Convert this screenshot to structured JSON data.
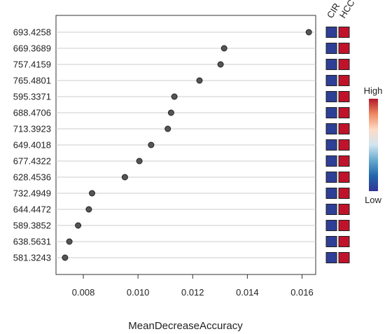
{
  "chart_data": {
    "type": "dot",
    "xlabel": "MeanDecreaseAccuracy",
    "xlim": [
      0.007,
      0.0165
    ],
    "xticks": [
      "0.008",
      "0.010",
      "0.012",
      "0.014",
      "0.016"
    ],
    "xtick_values": [
      0.008,
      0.01,
      0.012,
      0.014,
      0.016
    ],
    "grid": "horizontal",
    "categories": [
      "693.4258",
      "669.3689",
      "757.4159",
      "765.4801",
      "595.3371",
      "688.4706",
      "713.3923",
      "649.4018",
      "677.4322",
      "628.4536",
      "732.4949",
      "644.4472",
      "589.3852",
      "638.5631",
      "581.3243"
    ],
    "values": [
      0.01625,
      0.01315,
      0.01302,
      0.01225,
      0.01133,
      0.01121,
      0.01109,
      0.01048,
      0.01005,
      0.00952,
      0.00832,
      0.0082,
      0.00781,
      0.00749,
      0.00733
    ],
    "heatmap": {
      "columns": [
        "CIR",
        "HCC"
      ],
      "colors": {
        "CIR": "#2e3f96",
        "HCC": "#c0132b"
      }
    },
    "legend": {
      "high_label": "High",
      "low_label": "Low",
      "placement": "right",
      "gradient": [
        "#b2182b",
        "#ef8a62",
        "#fddbc7",
        "#d1e5f0",
        "#67a9cf",
        "#2166ac",
        "#313695"
      ]
    },
    "colors": {
      "point_fill": "#555555",
      "point_stroke": "#222222",
      "grid": "#cccccc",
      "axis": "#333333"
    }
  }
}
